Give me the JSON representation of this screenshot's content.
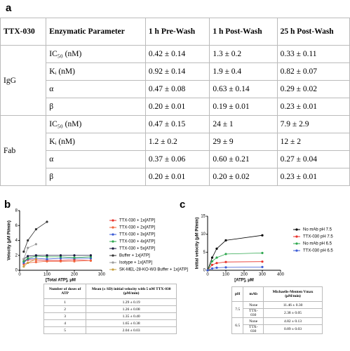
{
  "panel_a": {
    "label": "a",
    "table": {
      "header": [
        "TTX-030",
        "Enzymatic Parameter",
        "1 h Pre-Wash",
        "1 h Post-Wash",
        "25 h Post-Wash"
      ],
      "groups": [
        {
          "name": "IgG",
          "rows": [
            [
              "IC₅₀ (nM)",
              "0.42 ± 0.14",
              "1.3 ± 0.2",
              "0.33 ± 0.11"
            ],
            [
              "Kᵢ (nM)",
              "0.92 ± 0.14",
              "1.9 ± 0.4",
              "0.82 ± 0.07"
            ],
            [
              "α",
              "0.47 ± 0.08",
              "0.63 ± 0.14",
              "0.29 ± 0.02"
            ],
            [
              "β",
              "0.20 ± 0.01",
              "0.19 ± 0.01",
              "0.23 ± 0.01"
            ]
          ]
        },
        {
          "name": "Fab",
          "rows": [
            [
              "IC₅₀ (nM)",
              "0.47 ± 0.15",
              "24 ± 1",
              "7.9 ± 2.9"
            ],
            [
              "Kᵢ (nM)",
              "1.2 ± 0.2",
              "29 ± 9",
              "12 ± 2"
            ],
            [
              "α",
              "0.37 ± 0.06",
              "0.60 ± 0.21",
              "0.27 ± 0.04"
            ],
            [
              "β",
              "0.20 ± 0.01",
              "0.20 ± 0.02",
              "0.23 ± 0.01"
            ]
          ]
        }
      ]
    }
  },
  "panel_b": {
    "label": "b",
    "chart_data": {
      "type": "line",
      "y_label": "Velocity (μM Pi/min)",
      "x_label": "[Total ATP], μM",
      "x": [
        15,
        30,
        60,
        100,
        150,
        200,
        260
      ],
      "xlim": [
        0,
        300
      ],
      "xticks": [
        0,
        100,
        200,
        300
      ],
      "ylim": [
        0,
        8
      ],
      "yticks": [
        0,
        2,
        4,
        6,
        8
      ],
      "series": [
        {
          "name": "TTX-030 + 1x[ATP]",
          "color": "#e8312a",
          "values": [
            1.2,
            1.4,
            1.4,
            1.3,
            1.3,
            1.4,
            1.3
          ]
        },
        {
          "name": "TTX-030 + 2x[ATP]",
          "color": "#f0643c",
          "values": [
            0.8,
            1.0,
            1.1,
            1.2,
            1.2,
            1.2,
            1.3
          ]
        },
        {
          "name": "TTX-030 + 3x[ATP]",
          "color": "#3b5bd6",
          "values": [
            1.0,
            1.5,
            1.6,
            1.5,
            1.6,
            1.6,
            1.6
          ]
        },
        {
          "name": "TTX-030 + 4x[ATP]",
          "color": "#2fa84f",
          "values": [
            1.2,
            1.6,
            1.9,
            1.8,
            1.8,
            1.7,
            1.8
          ]
        },
        {
          "name": "TTX-030 + 5x[ATP]",
          "color": "#1a1a40",
          "values": [
            1.5,
            1.9,
            2.0,
            2.0,
            2.0,
            2.0,
            2.0
          ]
        },
        {
          "name": "Buffer + 1x[ATP]",
          "color": "#333333",
          "values": [
            2.5,
            4.0,
            5.5,
            6.5,
            null,
            null,
            null
          ]
        },
        {
          "name": "Isotype + 1x[ATP]",
          "color": "#999999",
          "values": [
            1.5,
            3.0,
            3.5,
            null,
            null,
            null,
            null
          ]
        },
        {
          "name": "SK-MEL-28-KO-W3 Buffer + 1x[ATP]",
          "color": "#c8a040",
          "values": [
            0.5,
            1.0,
            1.5,
            null,
            null,
            null,
            null
          ]
        }
      ]
    },
    "table": {
      "header": [
        "Number of doses of ATP",
        "Mean (± SD) initial velocity with 5 nM TTX-030 (μM/min)"
      ],
      "rows": [
        [
          "1",
          "1.29 ± 0.19"
        ],
        [
          "2",
          "1.26 ± 0.08"
        ],
        [
          "3",
          "1.35 ± 0.40"
        ],
        [
          "4",
          "1.65 ± 0.38"
        ],
        [
          "5",
          "2.04 ± 0.03"
        ]
      ]
    }
  },
  "panel_c": {
    "label": "c",
    "chart_data": {
      "type": "line",
      "y_label": "Initial velocity (μM Pi/min)",
      "x_label": "[ATP], μM",
      "x": [
        0,
        25,
        50,
        100,
        300
      ],
      "xlim": [
        0,
        400
      ],
      "xticks": [
        0,
        100,
        200,
        300,
        400
      ],
      "ylim": [
        0,
        15
      ],
      "yticks": [
        0,
        5,
        10,
        15
      ],
      "series": [
        {
          "name": "No mAb pH 7.5",
          "color": "#000000",
          "values": [
            0,
            3.5,
            6,
            8.3,
            9.7
          ]
        },
        {
          "name": "TTX-030 pH 7.5",
          "color": "#e8312a",
          "values": [
            0,
            1.5,
            2,
            2.3,
            2.4
          ]
        },
        {
          "name": "No mAb pH 6.5",
          "color": "#2fa84f",
          "values": [
            0,
            2.5,
            3.5,
            4.5,
            4.8
          ]
        },
        {
          "name": "TTX-030 pH 6.5",
          "color": "#3b5bd6",
          "values": [
            0,
            0.5,
            0.7,
            0.8,
            0.9
          ]
        }
      ]
    },
    "table": {
      "header": [
        "pH",
        "mAb",
        "Michaelis-Menten Vmax (μM/min)"
      ],
      "groups": [
        {
          "name": "7.5",
          "rows": [
            [
              "None",
              "11.46 ± 0.30"
            ],
            [
              "TTX-030",
              "2.38 ± 0.05"
            ]
          ]
        },
        {
          "name": "6.5",
          "rows": [
            [
              "None",
              "4.82 ± 0.13"
            ],
            [
              "TTX-030",
              "0.89 ± 0.03"
            ]
          ]
        }
      ]
    }
  }
}
